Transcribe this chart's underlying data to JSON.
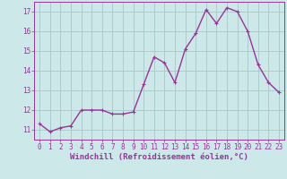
{
  "x": [
    0,
    1,
    2,
    3,
    4,
    5,
    6,
    7,
    8,
    9,
    10,
    11,
    12,
    13,
    14,
    15,
    16,
    17,
    18,
    19,
    20,
    21,
    22,
    23
  ],
  "y": [
    11.3,
    10.9,
    11.1,
    11.2,
    12.0,
    12.0,
    12.0,
    11.8,
    11.8,
    11.9,
    13.3,
    14.7,
    14.4,
    13.4,
    15.1,
    15.9,
    17.1,
    16.4,
    17.2,
    17.0,
    16.0,
    14.3,
    13.4,
    12.9
  ],
  "line_color": "#993399",
  "marker": "+",
  "marker_size": 3,
  "bg_color": "#cce8e8",
  "grid_color": "#aacccc",
  "xlabel": "Windchill (Refroidissement éolien,°C)",
  "ylabel_values": [
    11,
    12,
    13,
    14,
    15,
    16,
    17
  ],
  "xlabel_values": [
    0,
    1,
    2,
    3,
    4,
    5,
    6,
    7,
    8,
    9,
    10,
    11,
    12,
    13,
    14,
    15,
    16,
    17,
    18,
    19,
    20,
    21,
    22,
    23
  ],
  "ylim": [
    10.5,
    17.5
  ],
  "xlim": [
    -0.5,
    23.5
  ],
  "text_color": "#993399",
  "tick_fontsize": 5.5,
  "xlabel_fontsize": 6.5,
  "linewidth": 1.0
}
